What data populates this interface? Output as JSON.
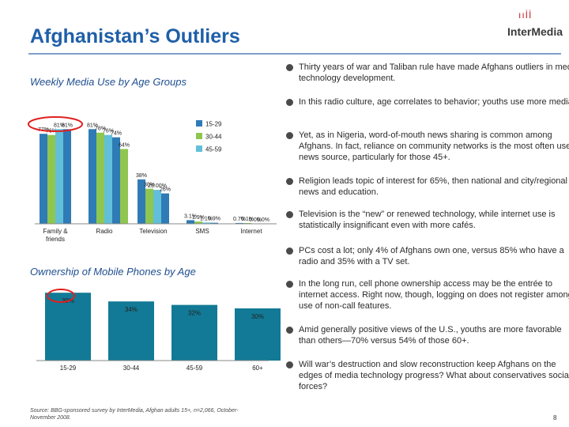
{
  "page": {
    "title": "Afghanistan’s Outliers",
    "logo_text": "InterMedia",
    "page_number": "8",
    "source": "Source: BBG-sponsored survey by InterMedia, Afghan adults 15+, n=2,066, October-November 2008.",
    "bullets": [
      "Thirty years of war and Taliban rule have made Afghans outliers in media technology development.",
      "In this radio culture, age correlates to behavior; youths use more media.",
      "Yet, as in Nigeria, word-of-mouth news sharing is common among Afghans. In fact, reliance on community networks is the most often used news source, particularly for those 45+.",
      "Religion leads topic of interest for 65%, then national and city/regional news and education.",
      "Television is the “new” or renewed technology, while internet use is statistically insignificant even with more cafés.",
      "PCs cost a lot; only 4% of Afghans own one, versus 85% who have a radio and 35% with a TV set.",
      "In the long run, cell phone ownership access may be the entrée to internet access. Right now, though, logging on does not register among use of non-call features.",
      "Amid generally positive views of the U.S., youths are more favorable than others—70% versus 54% of those 60+.",
      "Will war’s destruction and slow reconstruction keep Afghans on the edges of media technology progress? What about conservatives social forces?"
    ]
  },
  "colors": {
    "title": "#1f5fa8",
    "series_15_29": "#2e7bb6",
    "series_30_44": "#8fc64f",
    "series_45_59": "#62bfd9",
    "phone_bar": "#127a96",
    "highlight_circle": "#e02020"
  },
  "chart_data": [
    {
      "type": "bar",
      "title": "Weekly Media Use by Age Groups",
      "categories": [
        "Family & friends",
        "Radio",
        "Television",
        "SMS",
        "Internet"
      ],
      "series": [
        {
          "name": "15-29",
          "values": [
            77,
            81,
            38,
            3.1,
            0.7
          ],
          "labels": [
            "77%",
            "81%",
            "38%",
            "3.1%",
            "0.7%"
          ]
        },
        {
          "name": "30-44",
          "values": [
            76,
            78,
            30,
            1.9,
            0.1
          ],
          "labels": [
            "76%",
            "78%",
            "30%",
            "1.9%",
            "0.1%"
          ]
        },
        {
          "name": "45-59",
          "values": [
            81,
            76,
            29,
            1.1,
            0
          ],
          "labels": [
            "81%",
            "76%",
            "29.00%",
            "1.1%",
            "0.0%"
          ]
        },
        {
          "name": "",
          "values": [
            81,
            74,
            26,
            0.9,
            0
          ],
          "labels": [
            "81%",
            "74%",
            "26%",
            "0.9%",
            "0.0%"
          ]
        },
        {
          "name": "",
          "values": [
            null,
            64,
            null,
            null,
            null
          ],
          "labels": [
            "",
            "64%",
            "",
            "",
            ""
          ]
        }
      ],
      "legend": [
        "15-29",
        "30-44",
        "45-59"
      ],
      "legend_position": "right",
      "ylim": [
        0,
        100
      ],
      "grid": false,
      "highlight": "Family & friends"
    },
    {
      "type": "bar",
      "title": "Ownership of Mobile Phones by Age",
      "categories": [
        "15-29",
        "30-44",
        "45-59",
        "60+"
      ],
      "values": [
        39,
        34,
        32,
        30
      ],
      "labels": [
        "39%",
        "34%",
        "32%",
        "30%"
      ],
      "ylim": [
        0,
        40
      ],
      "grid": false,
      "highlight": "15-29"
    }
  ]
}
